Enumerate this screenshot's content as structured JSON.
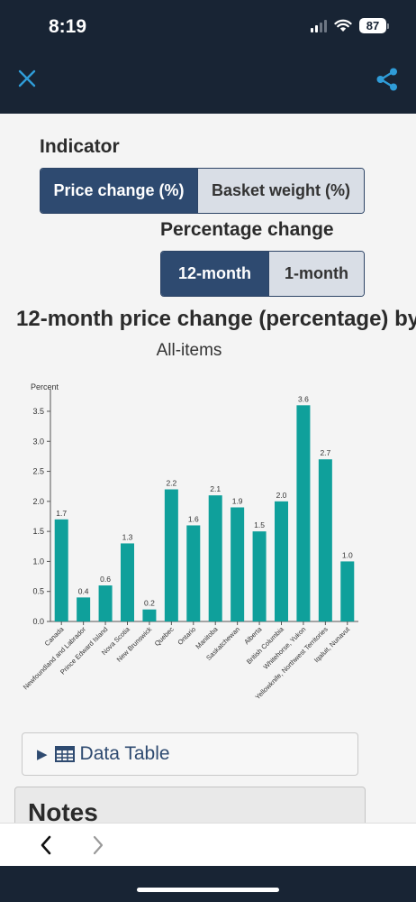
{
  "status": {
    "time": "8:19",
    "battery": "87"
  },
  "filters": {
    "indicator_label": "Indicator",
    "indicator_options": [
      "Price change (%)",
      "Basket weight (%)"
    ],
    "percentage_label": "Percentage change",
    "percentage_options": [
      "12-month",
      "1-month"
    ]
  },
  "chart_title": "12-month price change (percentage) by",
  "chart_subtitle": "All-items",
  "chart_data": {
    "type": "bar",
    "ylabel": "Percent",
    "ylim": [
      0,
      3.8
    ],
    "yticks": [
      "0.0",
      "0.5",
      "1.0",
      "1.5",
      "2.0",
      "2.5",
      "3.0",
      "3.5"
    ],
    "grid": false,
    "bar_color": "#0fa09b",
    "categories": [
      "Canada",
      "Newfoundland and Labrador",
      "Prince Edward Island",
      "Nova Scotia",
      "New Brunswick",
      "Quebec",
      "Ontario",
      "Manitoba",
      "Saskatchewan",
      "Alberta",
      "British Columbia",
      "Whitehorse, Yukon",
      "Yellowknife, Northwest Territories",
      "Iqaluit, Nunavut"
    ],
    "values": [
      1.7,
      0.4,
      0.6,
      1.3,
      0.2,
      2.2,
      1.6,
      2.1,
      1.9,
      1.5,
      2.0,
      3.6,
      2.7,
      1.0
    ]
  },
  "data_table_label": "Data Table",
  "notes_title": "Notes",
  "colors": {
    "accent": "#2e4a70",
    "bar": "#0fa09b",
    "chrome": "#182434",
    "icon": "#2f9cd8"
  }
}
